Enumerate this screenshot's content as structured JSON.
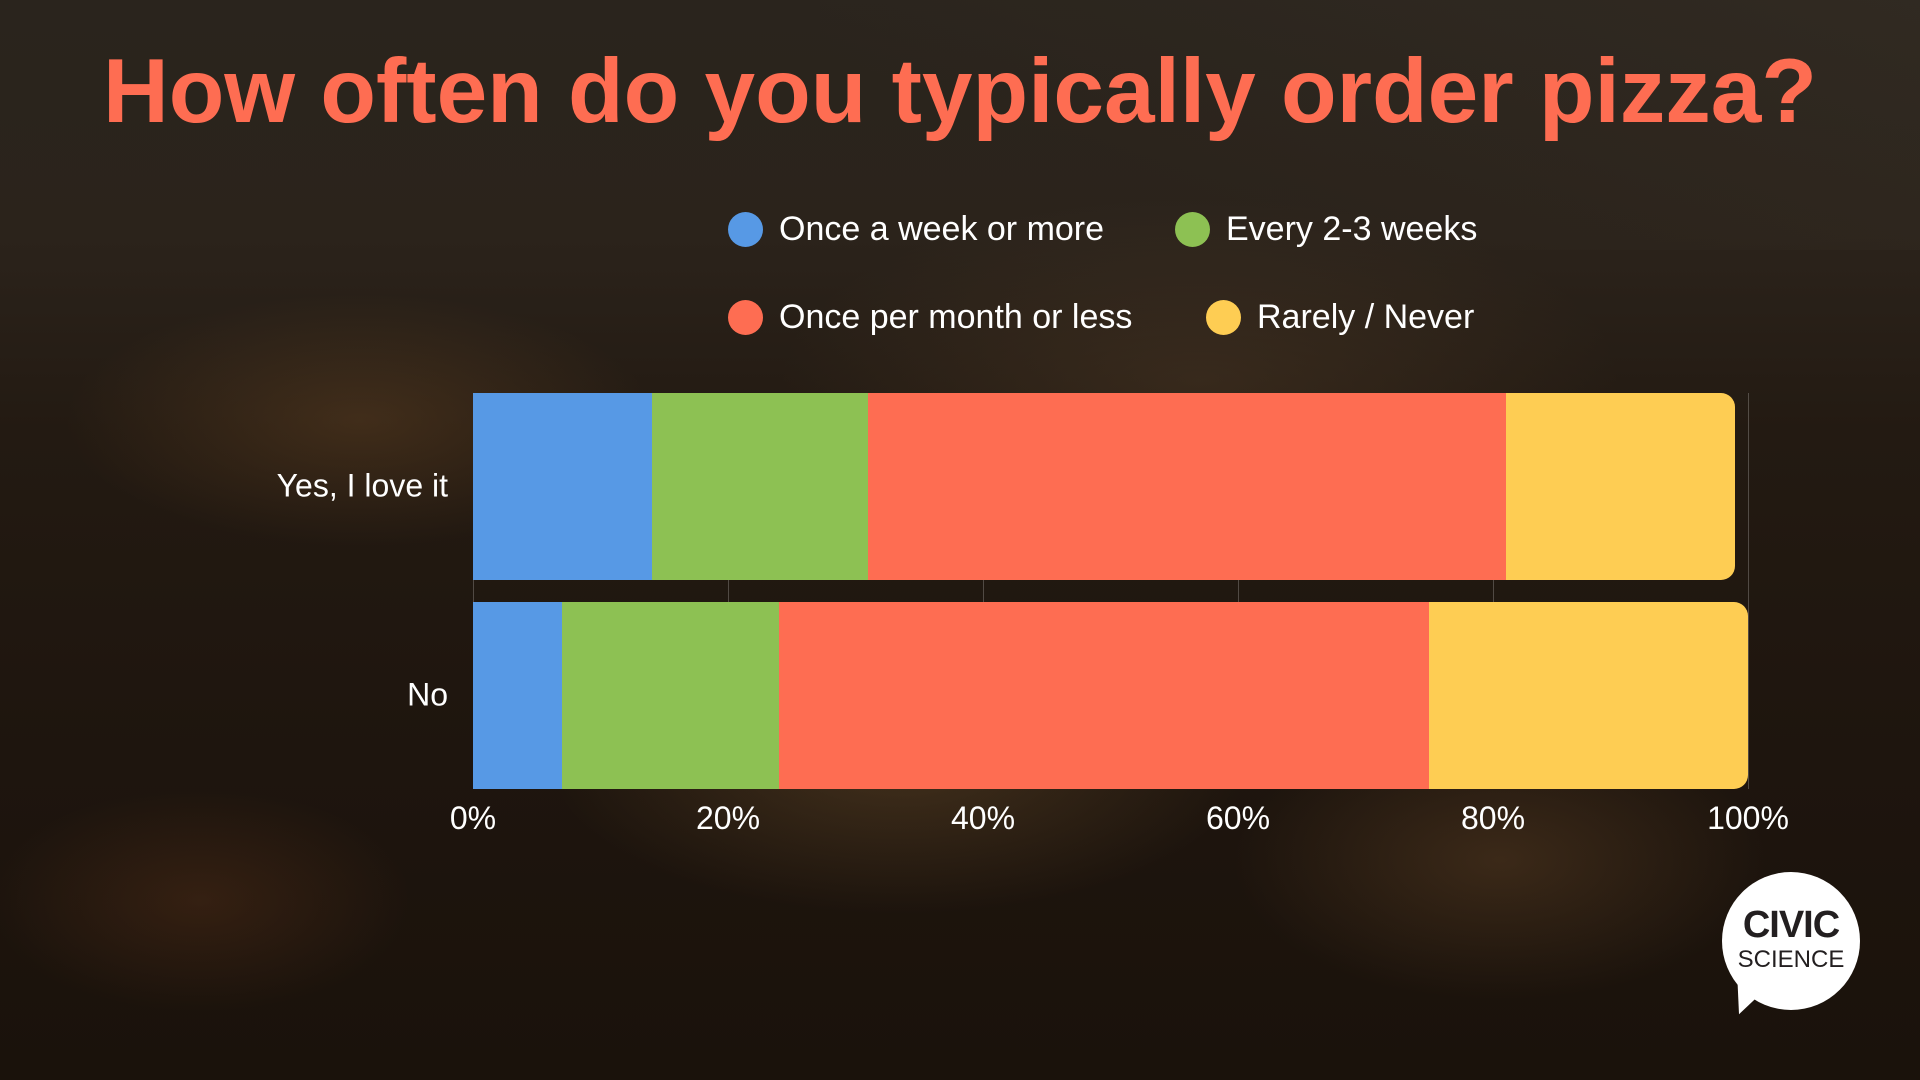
{
  "title": "How often do you typically order pizza?",
  "legend": {
    "items": [
      {
        "label": "Once a week or more",
        "color": "#5799e5"
      },
      {
        "label": "Every 2-3 weeks",
        "color": "#8dc153"
      },
      {
        "label": "Once per month or less",
        "color": "#fe6d52"
      },
      {
        "label": "Rarely / Never",
        "color": "#fecd53"
      }
    ]
  },
  "axis": {
    "ticks": [
      "0%",
      "20%",
      "40%",
      "60%",
      "80%",
      "100%"
    ]
  },
  "categories": [
    "Yes, I love it",
    "No"
  ],
  "logo": {
    "line1": "CIVIC",
    "line2": "SCIENCE"
  },
  "chart_data": {
    "type": "bar",
    "orientation": "horizontal",
    "stacked": true,
    "title": "How often do you typically order pizza?",
    "categories": [
      "Yes, I love it",
      "No"
    ],
    "series": [
      {
        "name": "Once a week or more",
        "color": "#5799e5",
        "values": [
          14,
          7
        ]
      },
      {
        "name": "Every 2-3 weeks",
        "color": "#8dc153",
        "values": [
          17,
          17
        ]
      },
      {
        "name": "Once per month or less",
        "color": "#fe6d52",
        "values": [
          50,
          51
        ]
      },
      {
        "name": "Rarely / Never",
        "color": "#fecd53",
        "values": [
          18,
          25
        ]
      }
    ],
    "xlabel": "",
    "ylabel": "",
    "xlim": [
      0,
      100
    ],
    "x_tick_labels": [
      "0%",
      "20%",
      "40%",
      "60%",
      "80%",
      "100%"
    ],
    "grid": true,
    "legend_position": "top"
  }
}
